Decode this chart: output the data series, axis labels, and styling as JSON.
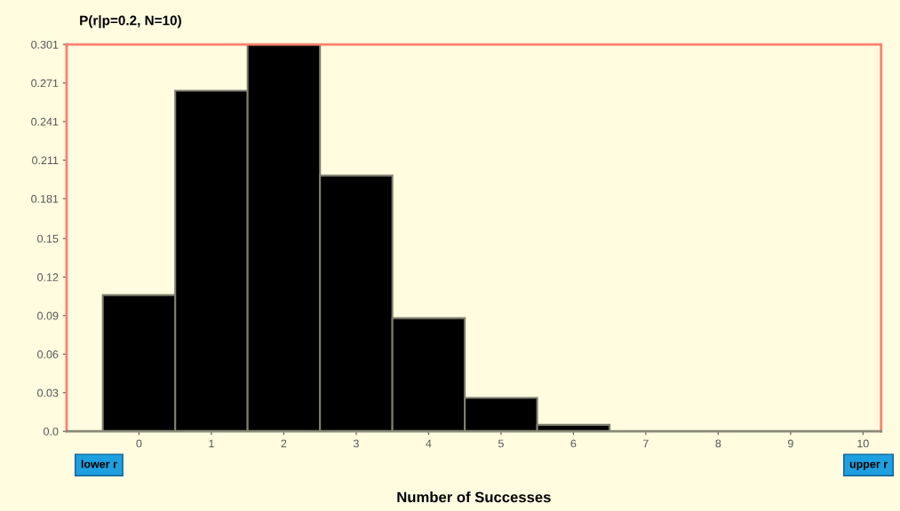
{
  "chart_data": {
    "type": "bar",
    "title": "P(r|p=0.2, N=10)",
    "xlabel": "Number of Successes",
    "categories": [
      "0",
      "1",
      "2",
      "3",
      "4",
      "5",
      "6",
      "7",
      "8",
      "9",
      "10"
    ],
    "values": [
      0.106,
      0.265,
      0.301,
      0.199,
      0.088,
      0.026,
      0.005,
      0,
      0,
      0,
      0
    ],
    "color": "#000000",
    "ylim": [
      0,
      0.301
    ],
    "yticks": [
      {
        "value": 0,
        "label": "0.0"
      },
      0.03,
      0.06,
      0.09,
      0.12,
      0.15,
      0.181,
      0.211,
      0.241,
      0.271,
      0.301
    ],
    "annotations": [
      "lower r",
      "upper r"
    ]
  }
}
